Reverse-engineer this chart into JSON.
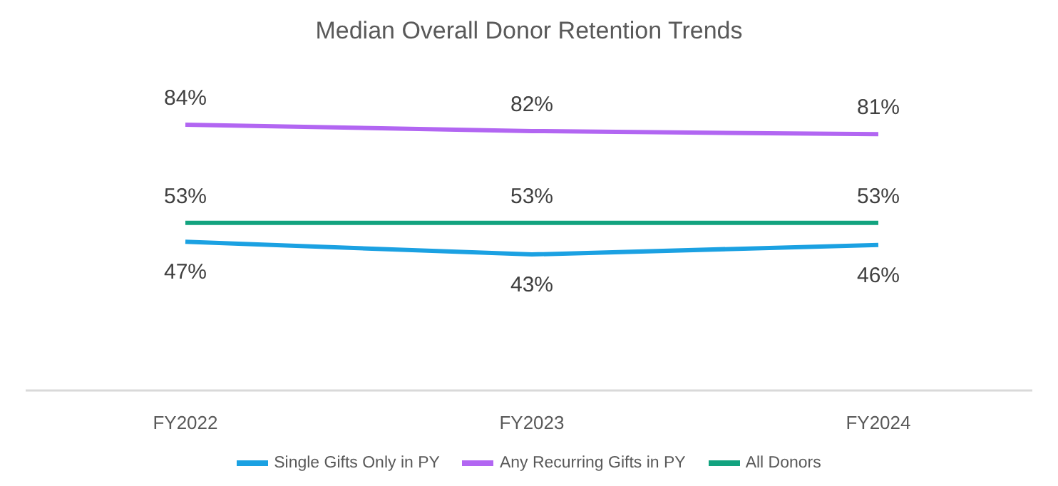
{
  "chart_data": {
    "type": "line",
    "title": "Median Overall Donor Retention Trends",
    "categories": [
      "FY2022",
      "FY2023",
      "FY2024"
    ],
    "series": [
      {
        "name": "Single Gifts Only in PY",
        "color": "#1ba1e2",
        "values": [
          47,
          43,
          46
        ],
        "value_labels": [
          "47%",
          "43%",
          "46%"
        ]
      },
      {
        "name": "Any Recurring Gifts in PY",
        "color": "#b266f2",
        "values": [
          84,
          82,
          81
        ],
        "value_labels": [
          "84%",
          "82%",
          "81%"
        ]
      },
      {
        "name": "All Donors",
        "color": "#12a37f",
        "values": [
          53,
          53,
          53
        ],
        "value_labels": [
          "53%",
          "53%",
          "53%"
        ]
      }
    ],
    "legend": "bottom",
    "grid": false,
    "marker": "none",
    "line_style": "solid"
  }
}
